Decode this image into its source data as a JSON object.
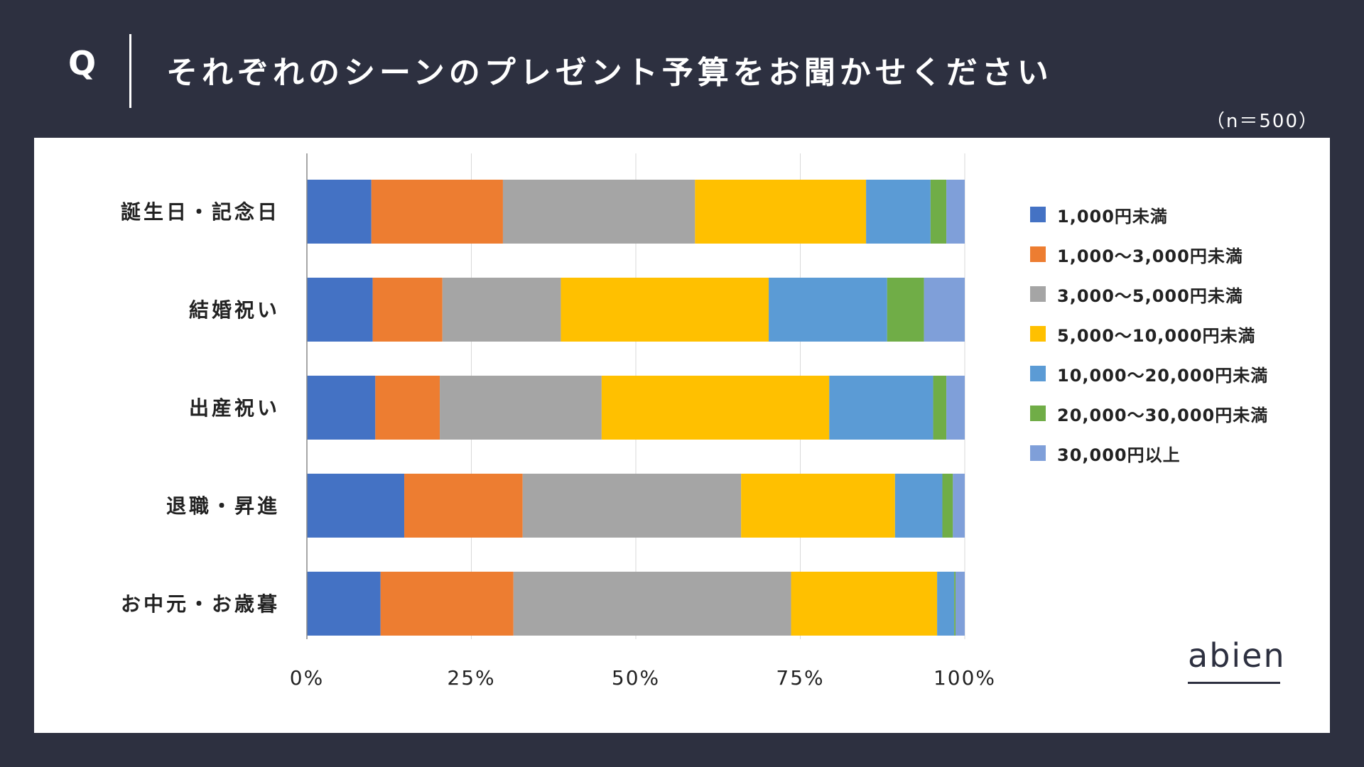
{
  "header": {
    "q_label": "Q",
    "title": "それぞれのシーンのプレゼント予算をお聞かせください",
    "sample_size": "（n＝500）"
  },
  "brand": {
    "logo_text": "abien"
  },
  "chart_data": {
    "type": "bar",
    "orientation": "horizontal",
    "stacked": true,
    "percent_stacked": true,
    "title": "",
    "xlabel": "",
    "ylabel": "",
    "xlim": [
      0,
      100
    ],
    "x_ticks": [
      "0%",
      "25%",
      "50%",
      "75%",
      "100%"
    ],
    "grid": "vertical",
    "legend_position": "right",
    "categories": [
      "誕生日・記念日",
      "結婚祝い",
      "出産祝い",
      "退職・昇進",
      "お中元・お歳暮"
    ],
    "series": [
      {
        "name": "1,000円未満",
        "color": "#4472c4",
        "values": [
          9.8,
          10.0,
          10.4,
          14.8,
          11.2
        ]
      },
      {
        "name": "1,000〜3,000円未満",
        "color": "#ed7d31",
        "values": [
          20.0,
          10.6,
          9.8,
          18.0,
          20.2
        ]
      },
      {
        "name": "3,000〜5,000円未満",
        "color": "#a5a5a5",
        "values": [
          29.2,
          18.0,
          24.6,
          33.2,
          42.2
        ]
      },
      {
        "name": "5,000〜10,000円未満",
        "color": "#ffc000",
        "values": [
          26.0,
          31.6,
          34.6,
          23.4,
          22.2
        ]
      },
      {
        "name": "10,000〜20,000円未満",
        "color": "#5b9bd5",
        "values": [
          9.8,
          18.0,
          15.8,
          7.2,
          2.6
        ]
      },
      {
        "name": "20,000〜30,000円未満",
        "color": "#70ad47",
        "values": [
          2.4,
          5.6,
          2.0,
          1.6,
          0.2
        ]
      },
      {
        "name": "30,000円以上",
        "color": "#7f9fd9",
        "values": [
          2.8,
          6.2,
          2.8,
          1.8,
          1.4
        ]
      }
    ]
  }
}
